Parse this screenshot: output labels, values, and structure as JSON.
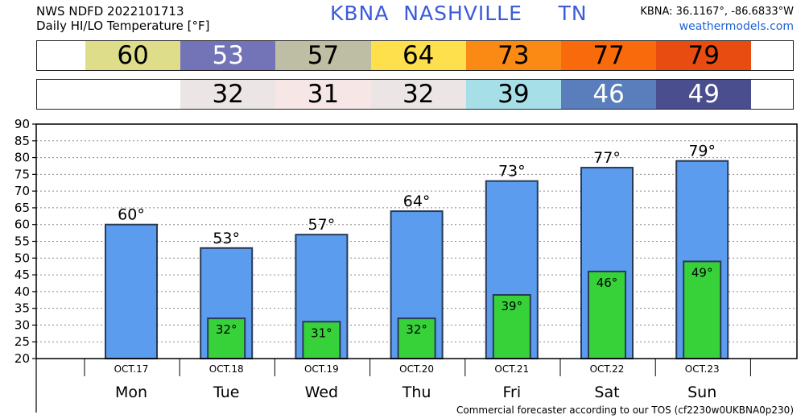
{
  "header": {
    "line1": "NWS NDFD 2022101713",
    "line2": "Daily HI/LO Temperature [°F]",
    "station_id": "KBNA",
    "station_name": "NASHVILLE",
    "state": "TN",
    "coords": "KBNA: 36.1167°, -86.6833°W",
    "site": "weathermodels.com"
  },
  "footer": "Commercial forecaster according to our TOS (cf2230w0UKBNA0p230)",
  "strips": {
    "hi": [
      {
        "value": "60",
        "color": "#dede8a",
        "text_color": "#000"
      },
      {
        "value": "53",
        "color": "#7373b8",
        "text_color": "#fff"
      },
      {
        "value": "57",
        "color": "#bebea4",
        "text_color": "#000"
      },
      {
        "value": "64",
        "color": "#fde04c",
        "text_color": "#000"
      },
      {
        "value": "73",
        "color": "#fb8a14",
        "text_color": "#000"
      },
      {
        "value": "77",
        "color": "#f86a0c",
        "text_color": "#000"
      },
      {
        "value": "79",
        "color": "#e94c10",
        "text_color": "#000"
      }
    ],
    "lo": [
      {
        "value": "",
        "color": "#ffffff",
        "text_color": "#000"
      },
      {
        "value": "32",
        "color": "#ebe5e5",
        "text_color": "#000"
      },
      {
        "value": "31",
        "color": "#f6e6e6",
        "text_color": "#000"
      },
      {
        "value": "32",
        "color": "#ebe5e5",
        "text_color": "#000"
      },
      {
        "value": "39",
        "color": "#a6dfe8",
        "text_color": "#000"
      },
      {
        "value": "46",
        "color": "#5a7ebc",
        "text_color": "#fff"
      },
      {
        "value": "49",
        "color": "#4a4e8e",
        "text_color": "#fff"
      }
    ]
  },
  "chart_data": {
    "type": "bar",
    "categories": [
      "Mon",
      "Tue",
      "Wed",
      "Thu",
      "Fri",
      "Sat",
      "Sun"
    ],
    "dates": [
      "OCT.17",
      "OCT.18",
      "OCT.19",
      "OCT.20",
      "OCT.21",
      "OCT.22",
      "OCT.23"
    ],
    "series": [
      {
        "name": "HI",
        "values": [
          60,
          53,
          57,
          64,
          73,
          77,
          79
        ],
        "color": "#5b9cef"
      },
      {
        "name": "LO",
        "values": [
          null,
          32,
          31,
          32,
          39,
          46,
          49
        ],
        "color": "#37d23a"
      }
    ],
    "hi_labels": [
      "60°",
      "53°",
      "57°",
      "64°",
      "73°",
      "77°",
      "79°"
    ],
    "lo_labels": [
      "",
      "32°",
      "31°",
      "32°",
      "39°",
      "46°",
      "49°"
    ],
    "ylim": [
      20,
      90
    ],
    "yticks": [
      20,
      25,
      30,
      35,
      40,
      45,
      50,
      55,
      60,
      65,
      70,
      75,
      80,
      85,
      90
    ],
    "grid": true,
    "title": "",
    "xlabel": "",
    "ylabel": ""
  }
}
